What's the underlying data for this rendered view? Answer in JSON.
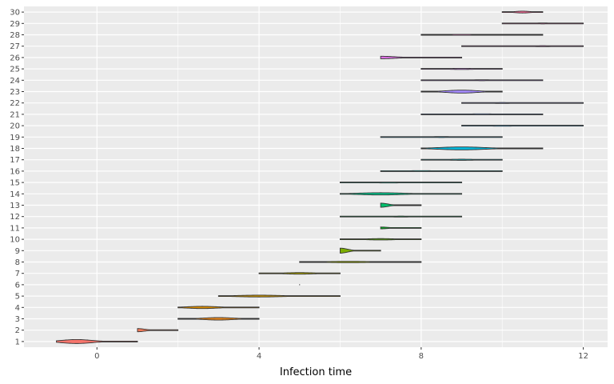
{
  "chart_data": {
    "type": "violin",
    "title": "",
    "xlabel": "Infection time",
    "ylabel": "",
    "xlim": [
      -1.8,
      12.6
    ],
    "ylim": [
      0.5,
      30.5
    ],
    "xticks": [
      0,
      4,
      8,
      12
    ],
    "xtick_labels": [
      "0",
      "4",
      "8",
      "12"
    ],
    "ytick_labels": [
      "1",
      "2",
      "3",
      "4",
      "5",
      "6",
      "7",
      "8",
      "9",
      "10",
      "11",
      "12",
      "13",
      "14",
      "15",
      "16",
      "17",
      "18",
      "19",
      "20",
      "21",
      "22",
      "23",
      "24",
      "25",
      "26",
      "27",
      "28",
      "29",
      "30"
    ],
    "grid": true,
    "legend": "none",
    "panel_background": "#ebebeb",
    "grid_color": "#ffffff",
    "outline_color": "#333333",
    "violins": [
      {
        "id": 1,
        "range": [
          -1,
          1
        ],
        "peak": -0.5,
        "width": 0.35,
        "fill": "#f8766d"
      },
      {
        "id": 2,
        "range": [
          1,
          2
        ],
        "peak": 1.0,
        "width": 0.28,
        "fill": "#f37b59"
      },
      {
        "id": 3,
        "range": [
          2,
          4
        ],
        "peak": 3.0,
        "width": 0.22,
        "fill": "#e7861b"
      },
      {
        "id": 4,
        "range": [
          2,
          4
        ],
        "peak": 2.6,
        "width": 0.2,
        "fill": "#db8e00"
      },
      {
        "id": 5,
        "range": [
          3,
          6
        ],
        "peak": 4.0,
        "width": 0.16,
        "fill": "#cd9600"
      },
      {
        "id": 6,
        "range": [
          5,
          5
        ],
        "peak": 5.0,
        "width": 0.05,
        "fill": "#bd9d00"
      },
      {
        "id": 7,
        "range": [
          4,
          6
        ],
        "peak": 5.0,
        "width": 0.14,
        "fill": "#aba300"
      },
      {
        "id": 8,
        "range": [
          5,
          8
        ],
        "peak": 6.2,
        "width": 0.12,
        "fill": "#96a900"
      },
      {
        "id": 9,
        "range": [
          6,
          7
        ],
        "peak": 6.0,
        "width": 0.44,
        "fill": "#7cae00"
      },
      {
        "id": 10,
        "range": [
          6,
          8
        ],
        "peak": 7.0,
        "width": 0.12,
        "fill": "#5bb300"
      },
      {
        "id": 11,
        "range": [
          7,
          8
        ],
        "peak": 7.0,
        "width": 0.16,
        "fill": "#00b81f"
      },
      {
        "id": 12,
        "range": [
          6,
          9
        ],
        "peak": 7.5,
        "width": 0.08,
        "fill": "#00bb4e"
      },
      {
        "id": 13,
        "range": [
          7,
          8
        ],
        "peak": 7.0,
        "width": 0.36,
        "fill": "#00be6c"
      },
      {
        "id": 14,
        "range": [
          6,
          9
        ],
        "peak": 7.0,
        "width": 0.2,
        "fill": "#00c087"
      },
      {
        "id": 15,
        "range": [
          6,
          9
        ],
        "peak": 7.2,
        "width": 0.08,
        "fill": "#00c19f"
      },
      {
        "id": 16,
        "range": [
          7,
          10
        ],
        "peak": 8.0,
        "width": 0.08,
        "fill": "#00c0b5"
      },
      {
        "id": 17,
        "range": [
          8,
          10
        ],
        "peak": 9.0,
        "width": 0.1,
        "fill": "#00bdca"
      },
      {
        "id": 18,
        "range": [
          8,
          11
        ],
        "peak": 9.0,
        "width": 0.26,
        "fill": "#00b8dc"
      },
      {
        "id": 19,
        "range": [
          7,
          10
        ],
        "peak": 8.5,
        "width": 0.08,
        "fill": "#00b0ec"
      },
      {
        "id": 20,
        "range": [
          9,
          12
        ],
        "peak": 10.0,
        "width": 0.08,
        "fill": "#00a7f9"
      },
      {
        "id": 21,
        "range": [
          8,
          11
        ],
        "peak": 9.5,
        "width": 0.08,
        "fill": "#619cff"
      },
      {
        "id": 22,
        "range": [
          9,
          12
        ],
        "peak": 10.0,
        "width": 0.08,
        "fill": "#8a94ff"
      },
      {
        "id": 23,
        "range": [
          8,
          10
        ],
        "peak": 9.0,
        "width": 0.26,
        "fill": "#a58aff"
      },
      {
        "id": 24,
        "range": [
          8,
          11
        ],
        "peak": 9.5,
        "width": 0.08,
        "fill": "#bd80fc"
      },
      {
        "id": 25,
        "range": [
          8,
          10
        ],
        "peak": 9.0,
        "width": 0.1,
        "fill": "#cf78f2"
      },
      {
        "id": 26,
        "range": [
          7,
          9
        ],
        "peak": 7.0,
        "width": 0.22,
        "fill": "#df70e6"
      },
      {
        "id": 27,
        "range": [
          9,
          12
        ],
        "peak": 11.0,
        "width": 0.08,
        "fill": "#eb69d6"
      },
      {
        "id": 28,
        "range": [
          8,
          11
        ],
        "peak": 9.0,
        "width": 0.08,
        "fill": "#f464c4"
      },
      {
        "id": 29,
        "range": [
          10,
          12
        ],
        "peak": 11.0,
        "width": 0.08,
        "fill": "#fa62ae"
      },
      {
        "id": 30,
        "range": [
          10,
          11
        ],
        "peak": 10.5,
        "width": 0.16,
        "fill": "#ff6797"
      }
    ]
  }
}
